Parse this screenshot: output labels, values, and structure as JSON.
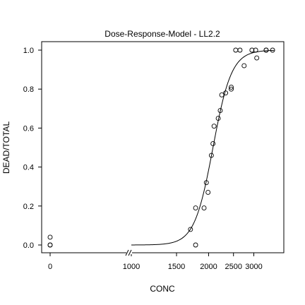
{
  "chart_data": {
    "type": "scatter",
    "title": "Dose-Response-Model - LL2.2",
    "xlabel": "CONC",
    "ylabel": "DEAD/TOTAL",
    "x_scale": "log",
    "x_axis_break": true,
    "ylim": [
      0,
      1
    ],
    "x_ticks": [
      0,
      1000,
      1500,
      2000,
      2500,
      3000
    ],
    "y_ticks": [
      0.0,
      0.2,
      0.4,
      0.6,
      0.8,
      1.0
    ],
    "x_tick_labels": [
      "0",
      "1000",
      "1500",
      "2000",
      "2500",
      "3000"
    ],
    "y_tick_labels": [
      "0.0",
      "0.2",
      "0.4",
      "0.6",
      "0.8",
      "1.0"
    ],
    "points": [
      {
        "x": 0,
        "y": 0.04
      },
      {
        "x": 0,
        "y": 0.0
      },
      {
        "x": 0,
        "y": 0.0
      },
      {
        "x": 1700,
        "y": 0.08
      },
      {
        "x": 1780,
        "y": 0.0
      },
      {
        "x": 1780,
        "y": 0.19
      },
      {
        "x": 1920,
        "y": 0.19
      },
      {
        "x": 1960,
        "y": 0.32
      },
      {
        "x": 1990,
        "y": 0.27
      },
      {
        "x": 2050,
        "y": 0.46
      },
      {
        "x": 2080,
        "y": 0.52
      },
      {
        "x": 2100,
        "y": 0.61
      },
      {
        "x": 2180,
        "y": 0.65
      },
      {
        "x": 2220,
        "y": 0.69
      },
      {
        "x": 2250,
        "y": 0.77
      },
      {
        "x": 2330,
        "y": 0.78
      },
      {
        "x": 2450,
        "y": 0.81
      },
      {
        "x": 2450,
        "y": 0.8
      },
      {
        "x": 2550,
        "y": 1.0
      },
      {
        "x": 2650,
        "y": 1.0
      },
      {
        "x": 2750,
        "y": 0.92
      },
      {
        "x": 2950,
        "y": 1.0
      },
      {
        "x": 3050,
        "y": 1.0
      },
      {
        "x": 3080,
        "y": 0.96
      },
      {
        "x": 3350,
        "y": 1.0
      },
      {
        "x": 3350,
        "y": 1.0
      },
      {
        "x": 3550,
        "y": 1.0
      }
    ],
    "fitted_curve": {
      "model": "LL2.2",
      "ed50": 2080,
      "slope": 12,
      "x_range": [
        1000,
        3600
      ],
      "lower": 0,
      "upper": 1
    }
  }
}
